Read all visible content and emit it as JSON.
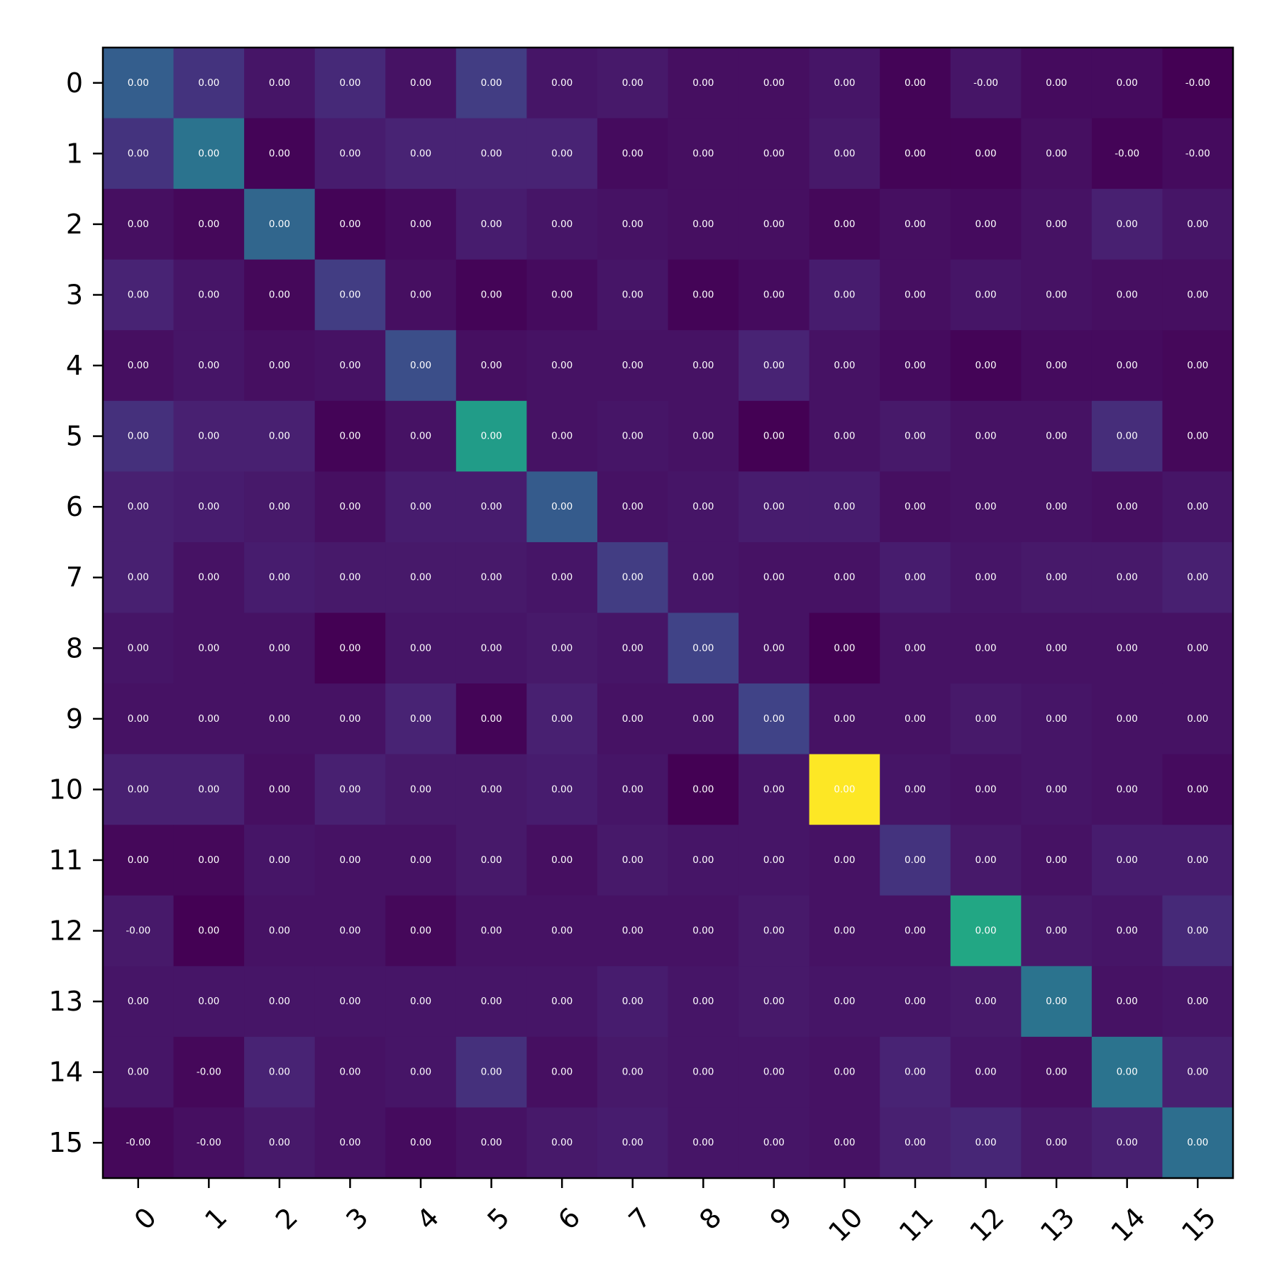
{
  "chart_data": {
    "type": "heatmap",
    "title": "",
    "xlabel": "",
    "ylabel": "",
    "x_categories": [
      "0",
      "1",
      "2",
      "3",
      "4",
      "5",
      "6",
      "7",
      "8",
      "9",
      "10",
      "11",
      "12",
      "13",
      "14",
      "15"
    ],
    "y_categories": [
      "0",
      "1",
      "2",
      "3",
      "4",
      "5",
      "6",
      "7",
      "8",
      "9",
      "10",
      "11",
      "12",
      "13",
      "14",
      "15"
    ],
    "colormap": "viridis",
    "intensity_scale": [
      0,
      1
    ],
    "intensity": [
      [
        0.3,
        0.15,
        0.06,
        0.12,
        0.05,
        0.18,
        0.06,
        0.07,
        0.04,
        0.04,
        0.06,
        0.01,
        0.06,
        0.03,
        0.03,
        0.0
      ],
      [
        0.15,
        0.38,
        0.01,
        0.08,
        0.1,
        0.1,
        0.1,
        0.03,
        0.04,
        0.04,
        0.07,
        0.01,
        0.01,
        0.04,
        0.01,
        0.03
      ],
      [
        0.04,
        0.02,
        0.33,
        0.01,
        0.03,
        0.08,
        0.06,
        0.05,
        0.04,
        0.04,
        0.02,
        0.04,
        0.03,
        0.05,
        0.09,
        0.06
      ],
      [
        0.1,
        0.06,
        0.02,
        0.18,
        0.04,
        0.01,
        0.03,
        0.06,
        0.01,
        0.03,
        0.08,
        0.04,
        0.06,
        0.05,
        0.04,
        0.04
      ],
      [
        0.04,
        0.06,
        0.04,
        0.05,
        0.24,
        0.04,
        0.05,
        0.05,
        0.05,
        0.1,
        0.05,
        0.03,
        0.01,
        0.03,
        0.03,
        0.02
      ],
      [
        0.14,
        0.09,
        0.09,
        0.01,
        0.05,
        0.55,
        0.05,
        0.06,
        0.05,
        0.0,
        0.05,
        0.07,
        0.05,
        0.05,
        0.13,
        0.02
      ],
      [
        0.09,
        0.08,
        0.07,
        0.04,
        0.08,
        0.08,
        0.29,
        0.05,
        0.06,
        0.08,
        0.08,
        0.04,
        0.05,
        0.05,
        0.04,
        0.06
      ],
      [
        0.09,
        0.05,
        0.08,
        0.07,
        0.07,
        0.07,
        0.06,
        0.18,
        0.06,
        0.05,
        0.05,
        0.08,
        0.06,
        0.07,
        0.07,
        0.09
      ],
      [
        0.06,
        0.05,
        0.05,
        0.0,
        0.06,
        0.06,
        0.07,
        0.06,
        0.2,
        0.05,
        0.0,
        0.05,
        0.05,
        0.05,
        0.05,
        0.05
      ],
      [
        0.05,
        0.05,
        0.05,
        0.05,
        0.1,
        0.01,
        0.09,
        0.05,
        0.05,
        0.2,
        0.05,
        0.05,
        0.07,
        0.06,
        0.05,
        0.05
      ],
      [
        0.09,
        0.09,
        0.04,
        0.09,
        0.07,
        0.07,
        0.08,
        0.06,
        0.0,
        0.06,
        1.0,
        0.06,
        0.05,
        0.06,
        0.05,
        0.03
      ],
      [
        0.02,
        0.02,
        0.06,
        0.05,
        0.05,
        0.07,
        0.04,
        0.07,
        0.06,
        0.06,
        0.05,
        0.15,
        0.07,
        0.05,
        0.08,
        0.08
      ],
      [
        0.07,
        0.0,
        0.05,
        0.05,
        0.02,
        0.05,
        0.05,
        0.05,
        0.05,
        0.07,
        0.05,
        0.05,
        0.6,
        0.07,
        0.06,
        0.12
      ],
      [
        0.06,
        0.06,
        0.06,
        0.06,
        0.06,
        0.06,
        0.06,
        0.08,
        0.06,
        0.07,
        0.06,
        0.06,
        0.07,
        0.38,
        0.05,
        0.06
      ],
      [
        0.06,
        0.02,
        0.1,
        0.05,
        0.06,
        0.14,
        0.04,
        0.07,
        0.06,
        0.06,
        0.05,
        0.1,
        0.06,
        0.04,
        0.38,
        0.09
      ],
      [
        0.02,
        0.04,
        0.07,
        0.05,
        0.03,
        0.05,
        0.07,
        0.08,
        0.06,
        0.06,
        0.05,
        0.09,
        0.11,
        0.07,
        0.09,
        0.36
      ]
    ],
    "cell_labels": [
      [
        "0.00",
        "0.00",
        "0.00",
        "0.00",
        "0.00",
        "0.00",
        "0.00",
        "0.00",
        "0.00",
        "0.00",
        "0.00",
        "0.00",
        "-0.00",
        "0.00",
        "0.00",
        "-0.00"
      ],
      [
        "0.00",
        "0.00",
        "0.00",
        "0.00",
        "0.00",
        "0.00",
        "0.00",
        "0.00",
        "0.00",
        "0.00",
        "0.00",
        "0.00",
        "0.00",
        "0.00",
        "-0.00",
        "-0.00"
      ],
      [
        "0.00",
        "0.00",
        "0.00",
        "0.00",
        "0.00",
        "0.00",
        "0.00",
        "0.00",
        "0.00",
        "0.00",
        "0.00",
        "0.00",
        "0.00",
        "0.00",
        "0.00",
        "0.00"
      ],
      [
        "0.00",
        "0.00",
        "0.00",
        "0.00",
        "0.00",
        "0.00",
        "0.00",
        "0.00",
        "0.00",
        "0.00",
        "0.00",
        "0.00",
        "0.00",
        "0.00",
        "0.00",
        "0.00"
      ],
      [
        "0.00",
        "0.00",
        "0.00",
        "0.00",
        "0.00",
        "0.00",
        "0.00",
        "0.00",
        "0.00",
        "0.00",
        "0.00",
        "0.00",
        "0.00",
        "0.00",
        "0.00",
        "0.00"
      ],
      [
        "0.00",
        "0.00",
        "0.00",
        "0.00",
        "0.00",
        "0.00",
        "0.00",
        "0.00",
        "0.00",
        "0.00",
        "0.00",
        "0.00",
        "0.00",
        "0.00",
        "0.00",
        "0.00"
      ],
      [
        "0.00",
        "0.00",
        "0.00",
        "0.00",
        "0.00",
        "0.00",
        "0.00",
        "0.00",
        "0.00",
        "0.00",
        "0.00",
        "0.00",
        "0.00",
        "0.00",
        "0.00",
        "0.00"
      ],
      [
        "0.00",
        "0.00",
        "0.00",
        "0.00",
        "0.00",
        "0.00",
        "0.00",
        "0.00",
        "0.00",
        "0.00",
        "0.00",
        "0.00",
        "0.00",
        "0.00",
        "0.00",
        "0.00"
      ],
      [
        "0.00",
        "0.00",
        "0.00",
        "0.00",
        "0.00",
        "0.00",
        "0.00",
        "0.00",
        "0.00",
        "0.00",
        "0.00",
        "0.00",
        "0.00",
        "0.00",
        "0.00",
        "0.00"
      ],
      [
        "0.00",
        "0.00",
        "0.00",
        "0.00",
        "0.00",
        "0.00",
        "0.00",
        "0.00",
        "0.00",
        "0.00",
        "0.00",
        "0.00",
        "0.00",
        "0.00",
        "0.00",
        "0.00"
      ],
      [
        "0.00",
        "0.00",
        "0.00",
        "0.00",
        "0.00",
        "0.00",
        "0.00",
        "0.00",
        "0.00",
        "0.00",
        "0.00",
        "0.00",
        "0.00",
        "0.00",
        "0.00",
        "0.00"
      ],
      [
        "0.00",
        "0.00",
        "0.00",
        "0.00",
        "0.00",
        "0.00",
        "0.00",
        "0.00",
        "0.00",
        "0.00",
        "0.00",
        "0.00",
        "0.00",
        "0.00",
        "0.00",
        "0.00"
      ],
      [
        "-0.00",
        "0.00",
        "0.00",
        "0.00",
        "0.00",
        "0.00",
        "0.00",
        "0.00",
        "0.00",
        "0.00",
        "0.00",
        "0.00",
        "0.00",
        "0.00",
        "0.00",
        "0.00"
      ],
      [
        "0.00",
        "0.00",
        "0.00",
        "0.00",
        "0.00",
        "0.00",
        "0.00",
        "0.00",
        "0.00",
        "0.00",
        "0.00",
        "0.00",
        "0.00",
        "0.00",
        "0.00",
        "0.00"
      ],
      [
        "0.00",
        "-0.00",
        "0.00",
        "0.00",
        "0.00",
        "0.00",
        "0.00",
        "0.00",
        "0.00",
        "0.00",
        "0.00",
        "0.00",
        "0.00",
        "0.00",
        "0.00",
        "0.00"
      ],
      [
        "-0.00",
        "-0.00",
        "0.00",
        "0.00",
        "0.00",
        "0.00",
        "0.00",
        "0.00",
        "0.00",
        "0.00",
        "0.00",
        "0.00",
        "0.00",
        "0.00",
        "0.00",
        "0.00"
      ]
    ],
    "grid": false,
    "legend": "none"
  }
}
